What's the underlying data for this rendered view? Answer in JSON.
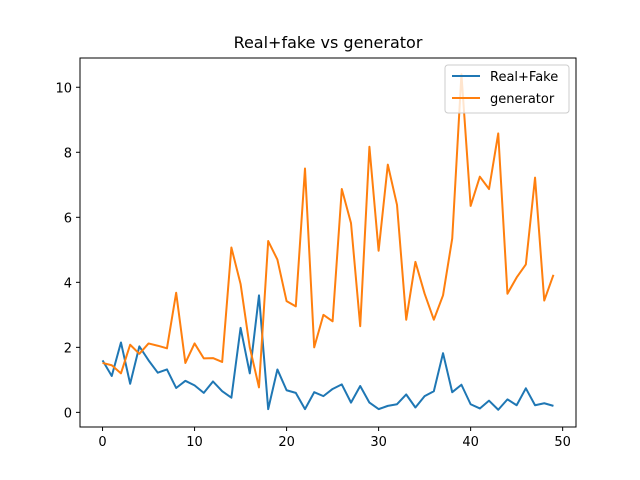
{
  "chart_data": {
    "type": "line",
    "title": "Real+fake vs generator",
    "xlabel": "",
    "ylabel": "",
    "xlim": [
      -2.45,
      51.45
    ],
    "ylim": [
      -0.45,
      10.9
    ],
    "xticks": [
      0,
      10,
      20,
      30,
      40,
      50
    ],
    "yticks": [
      0,
      2,
      4,
      6,
      8,
      10
    ],
    "grid": false,
    "legend_position": "top-right",
    "x": [
      0,
      1,
      2,
      3,
      4,
      5,
      6,
      7,
      8,
      9,
      10,
      11,
      12,
      13,
      14,
      15,
      16,
      17,
      18,
      19,
      20,
      21,
      22,
      23,
      24,
      25,
      26,
      27,
      28,
      29,
      30,
      31,
      32,
      33,
      34,
      35,
      36,
      37,
      38,
      39,
      40,
      41,
      42,
      43,
      44,
      45,
      46,
      47,
      48,
      49
    ],
    "series": [
      {
        "name": "Real+Fake",
        "color": "#1f77b4",
        "values": [
          1.6,
          1.12,
          2.15,
          0.88,
          2.03,
          1.6,
          1.22,
          1.32,
          0.75,
          0.97,
          0.83,
          0.6,
          0.95,
          0.65,
          0.45,
          2.6,
          1.2,
          3.6,
          0.1,
          1.32,
          0.68,
          0.6,
          0.1,
          0.62,
          0.5,
          0.72,
          0.86,
          0.3,
          0.81,
          0.3,
          0.1,
          0.2,
          0.25,
          0.55,
          0.15,
          0.5,
          0.65,
          1.82,
          0.62,
          0.85,
          0.25,
          0.12,
          0.36,
          0.08,
          0.4,
          0.22,
          0.74,
          0.22,
          0.28,
          0.2
        ]
      },
      {
        "name": "generator",
        "color": "#ff7f0e",
        "values": [
          1.52,
          1.45,
          1.2,
          2.08,
          1.8,
          2.12,
          2.05,
          1.97,
          3.68,
          1.52,
          2.12,
          1.66,
          1.67,
          1.55,
          5.07,
          3.95,
          2.0,
          0.77,
          5.27,
          4.7,
          3.42,
          3.26,
          7.5,
          2.0,
          3.0,
          2.8,
          6.87,
          5.82,
          2.65,
          8.17,
          4.97,
          7.62,
          6.38,
          2.85,
          4.63,
          3.65,
          2.85,
          3.6,
          5.35,
          10.4,
          6.35,
          7.25,
          6.87,
          8.58,
          3.65,
          4.15,
          4.55,
          7.22,
          3.44,
          4.23
        ]
      }
    ]
  }
}
